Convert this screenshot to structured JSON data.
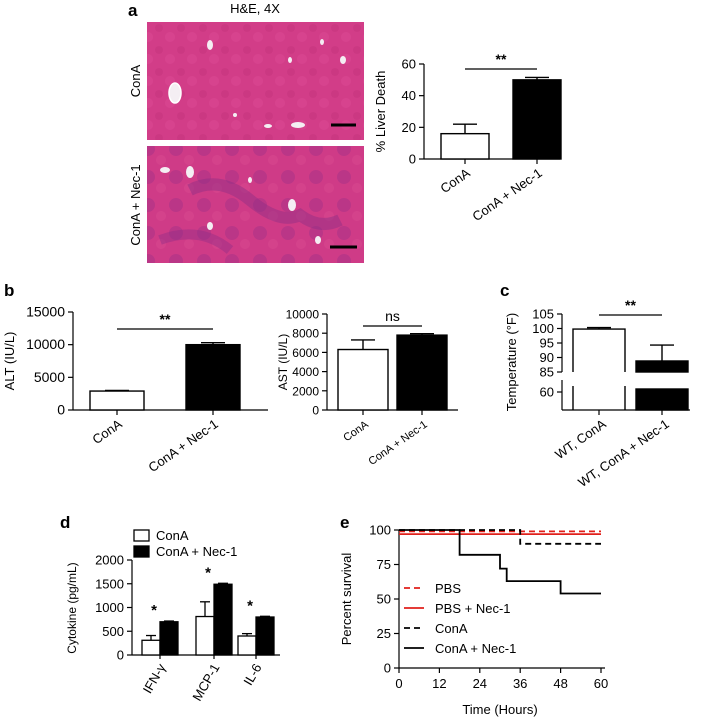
{
  "panels": {
    "a": {
      "letter": "a",
      "image_title": "H&E, 4X",
      "row_labels": [
        "ConA",
        "ConA + Nec-1"
      ],
      "colors": {
        "tissue": "#d23d88",
        "tissue_dark": "#a03089",
        "bar_fill": "#000000"
      }
    },
    "b": {
      "letter": "b"
    },
    "c": {
      "letter": "c"
    },
    "d": {
      "letter": "d"
    },
    "e": {
      "letter": "e"
    }
  },
  "chart_data": [
    {
      "id": "a_liver_death",
      "type": "bar",
      "categories": [
        "ConA",
        "ConA + Nec-1"
      ],
      "values": [
        16,
        50
      ],
      "errors": [
        6,
        1.5
      ],
      "fills": [
        "white",
        "black"
      ],
      "ylabel": "% Liver Death",
      "ylim": [
        0,
        60
      ],
      "yticks": [
        "0",
        "20",
        "40",
        "60"
      ],
      "significance": "**"
    },
    {
      "id": "b_alt",
      "type": "bar",
      "categories": [
        "ConA",
        "ConA + Nec-1"
      ],
      "values": [
        2900,
        10000
      ],
      "errors": [
        100,
        300
      ],
      "fills": [
        "white",
        "black"
      ],
      "ylabel": "ALT (IU/L)",
      "ylim": [
        0,
        15000
      ],
      "yticks": [
        "0",
        "5000",
        "10000",
        "15000"
      ],
      "significance": "**"
    },
    {
      "id": "b_ast",
      "type": "bar",
      "categories": [
        "ConA",
        "ConA + Nec-1"
      ],
      "values": [
        6300,
        7800
      ],
      "errors": [
        1000,
        150
      ],
      "fills": [
        "white",
        "black"
      ],
      "ylabel": "AST (IU/L)",
      "ylim": [
        0,
        10000
      ],
      "yticks": [
        "0",
        "2000",
        "4000",
        "6000",
        "8000",
        "10000"
      ],
      "significance": "ns"
    },
    {
      "id": "c_temperature",
      "type": "bar",
      "categories": [
        "WT, ConA",
        "WT, ConA + Nec-1"
      ],
      "values": [
        99.8,
        88.8
      ],
      "errors": [
        0.5,
        5.5
      ],
      "fills": [
        "white",
        "black"
      ],
      "ylabel": "Temperature (°F)",
      "axis_break": [
        60,
        85
      ],
      "ylim": [
        60,
        105
      ],
      "yticks": [
        "60",
        "85",
        "90",
        "95",
        "100",
        "105"
      ],
      "significance": "**"
    },
    {
      "id": "d_cytokine",
      "type": "bar",
      "categories": [
        "IFN-γ",
        "MCP-1",
        "IL-6"
      ],
      "series": [
        {
          "name": "ConA",
          "fill": "white",
          "values": [
            310,
            810,
            400
          ],
          "errors": [
            100,
            310,
            50
          ]
        },
        {
          "name": "ConA + Nec-1",
          "fill": "black",
          "values": [
            700,
            1490,
            800
          ],
          "errors": [
            15,
            20,
            15
          ]
        }
      ],
      "significance": [
        "*",
        "*",
        "*"
      ],
      "ylabel": "Cytokine (pg/mL)",
      "ylim": [
        0,
        2000
      ],
      "yticks": [
        "0",
        "500",
        "1000",
        "1500",
        "2000"
      ]
    },
    {
      "id": "e_survival",
      "type": "line",
      "xlabel": "Time (Hours)",
      "ylabel": "Percent survival",
      "xlim": [
        0,
        60
      ],
      "ylim": [
        0,
        100
      ],
      "xticks": [
        "0",
        "12",
        "24",
        "36",
        "48",
        "60"
      ],
      "yticks": [
        "0",
        "25",
        "50",
        "75",
        "100"
      ],
      "series": [
        {
          "name": "PBS",
          "color": "#e0201b",
          "dash": "dashed",
          "points": [
            [
              0,
              99
            ],
            [
              60,
              99
            ]
          ]
        },
        {
          "name": "PBS + Nec-1",
          "color": "#e0201b",
          "dash": "solid",
          "points": [
            [
              0,
              97
            ],
            [
              60,
              97
            ]
          ]
        },
        {
          "name": "ConA",
          "color": "#000000",
          "dash": "dashed",
          "points": [
            [
              0,
              100
            ],
            [
              36,
              100
            ],
            [
              36,
              90
            ],
            [
              60,
              90
            ]
          ]
        },
        {
          "name": "ConA + Nec-1",
          "color": "#000000",
          "dash": "solid",
          "points": [
            [
              0,
              100
            ],
            [
              18,
              100
            ],
            [
              18,
              82
            ],
            [
              30,
              82
            ],
            [
              30,
              72
            ],
            [
              32,
              72
            ],
            [
              32,
              63
            ],
            [
              48,
              63
            ],
            [
              48,
              54
            ],
            [
              60,
              54
            ]
          ]
        }
      ]
    }
  ]
}
